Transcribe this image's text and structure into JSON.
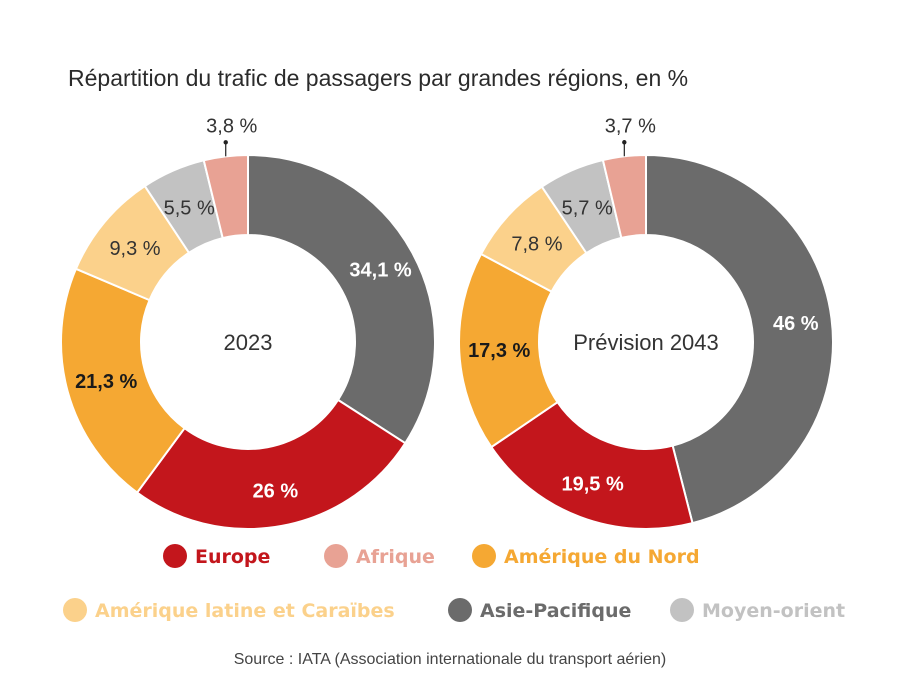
{
  "title": "Répartition du trafic de passagers par grandes régions, en %",
  "source": "Source : IATA (Association internationale du transport aérien)",
  "colors": {
    "europe": "#c3161c",
    "afrique": "#e8a294",
    "amerique_nord": "#f5a833",
    "amerique_latine": "#fbd18b",
    "asie_pacifique": "#6b6b6b",
    "moyen_orient": "#c2c2c2"
  },
  "chart_data": [
    {
      "type": "pie",
      "variant": "donut",
      "center_label": "2023",
      "slices": [
        {
          "key": "asie_pacifique",
          "name": "Asie-Pacifique",
          "value": 34.1,
          "label": "34,1 %",
          "bold": true,
          "label_color": "#ffffff"
        },
        {
          "key": "europe",
          "name": "Europe",
          "value": 26,
          "label": "26 %",
          "bold": true,
          "label_color": "#ffffff"
        },
        {
          "key": "amerique_nord",
          "name": "Amérique du Nord",
          "value": 21.3,
          "label": "21,3 %",
          "bold": true,
          "label_color": "#1a1a1a"
        },
        {
          "key": "amerique_latine",
          "name": "Amérique latine et Caraïbes",
          "value": 9.3,
          "label": "9,3 %",
          "bold": false,
          "label_color": "#333333"
        },
        {
          "key": "moyen_orient",
          "name": "Moyen-orient",
          "value": 5.5,
          "label": "5,5 %",
          "bold": false,
          "label_color": "#333333"
        },
        {
          "key": "afrique",
          "name": "Afrique",
          "value": 3.8,
          "label": "3,8 %",
          "bold": false,
          "label_color": "#333333",
          "callout": true
        }
      ]
    },
    {
      "type": "pie",
      "variant": "donut",
      "center_label": "Prévision 2043",
      "slices": [
        {
          "key": "asie_pacifique",
          "name": "Asie-Pacifique",
          "value": 46,
          "label": "46 %",
          "bold": true,
          "label_color": "#ffffff"
        },
        {
          "key": "europe",
          "name": "Europe",
          "value": 19.5,
          "label": "19,5 %",
          "bold": true,
          "label_color": "#ffffff"
        },
        {
          "key": "amerique_nord",
          "name": "Amérique du Nord",
          "value": 17.3,
          "label": "17,3 %",
          "bold": true,
          "label_color": "#1a1a1a"
        },
        {
          "key": "amerique_latine",
          "name": "Amérique latine et Caraïbes",
          "value": 7.8,
          "label": "7,8 %",
          "bold": false,
          "label_color": "#333333"
        },
        {
          "key": "moyen_orient",
          "name": "Moyen-orient",
          "value": 5.7,
          "label": "5,7 %",
          "bold": false,
          "label_color": "#333333"
        },
        {
          "key": "afrique",
          "name": "Afrique",
          "value": 3.7,
          "label": "3,7 %",
          "bold": false,
          "label_color": "#333333",
          "callout": true
        }
      ]
    }
  ],
  "legend": [
    {
      "key": "europe",
      "label": "Europe"
    },
    {
      "key": "afrique",
      "label": "Afrique"
    },
    {
      "key": "amerique_nord",
      "label": "Amérique du Nord"
    },
    {
      "key": "amerique_latine",
      "label": "Amérique latine et Caraïbes"
    },
    {
      "key": "asie_pacifique",
      "label": "Asie-Pacifique"
    },
    {
      "key": "moyen_orient",
      "label": "Moyen-orient"
    }
  ]
}
